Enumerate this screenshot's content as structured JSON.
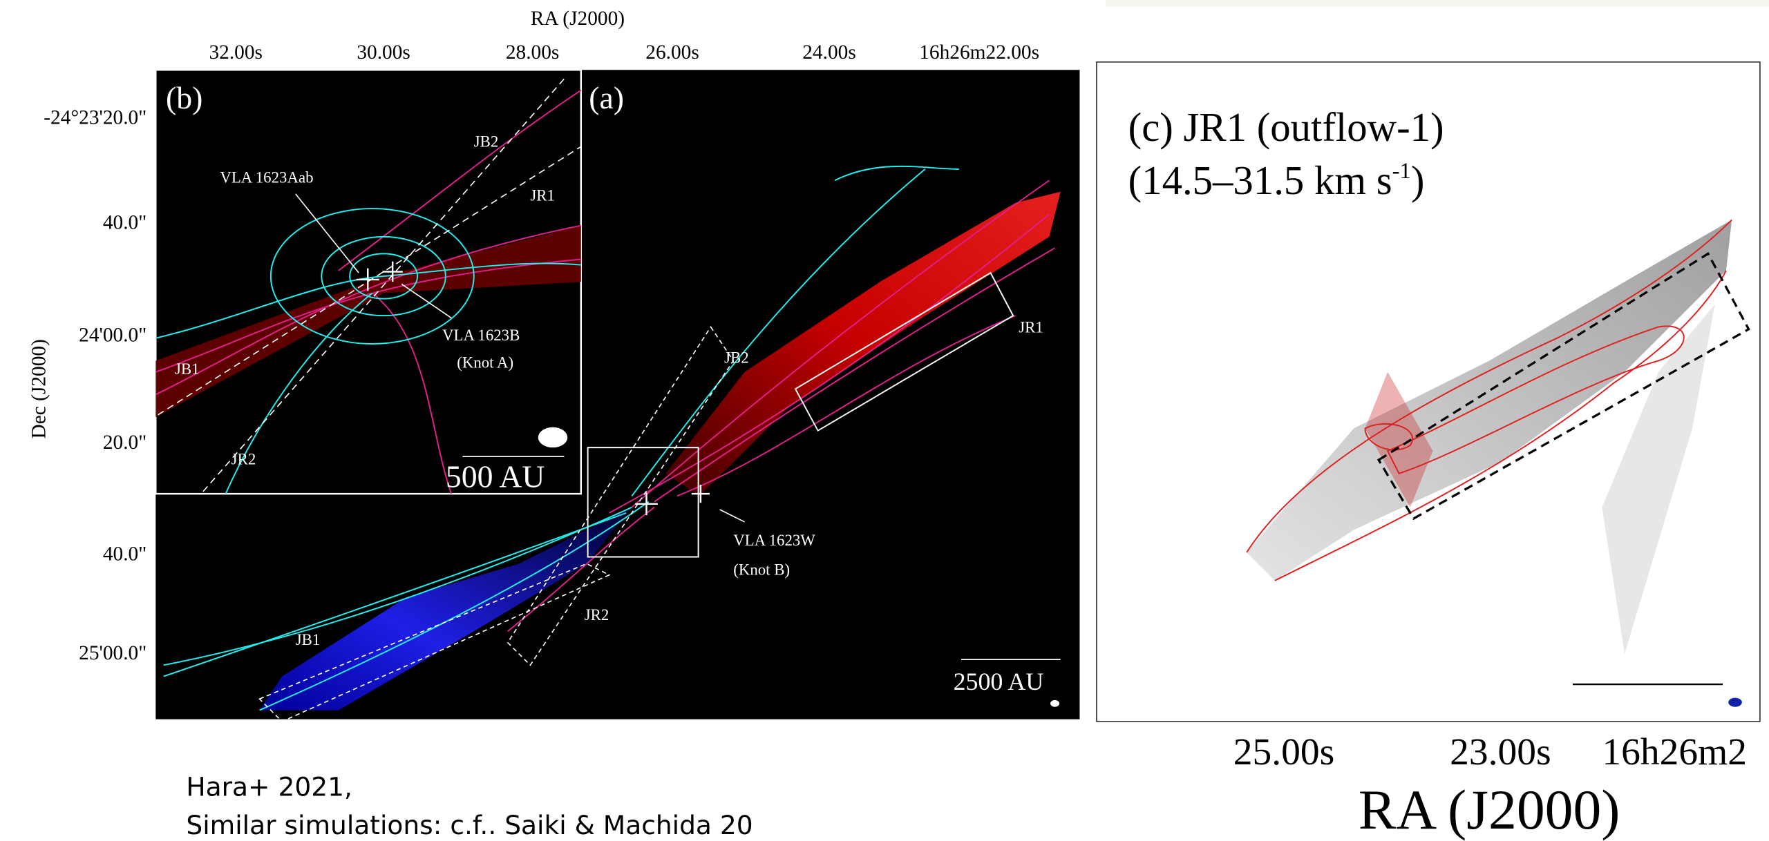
{
  "panel_ab": {
    "x_axis_title": "RA (J2000)",
    "x_ticks": [
      "32.00s",
      "30.00s",
      "28.00s",
      "26.00s",
      "24.00s",
      "16h26m22.00s"
    ],
    "y_axis_title": "Dec (J2000)",
    "y_ticks": [
      "-24°23'20.0\"",
      "40.0\"",
      "24'00.0\"",
      "20.0\"",
      "40.0\"",
      "25'00.0\""
    ],
    "panel_a": {
      "label": "(a)",
      "annotations": [
        "JR1",
        "JB2",
        "VLA 1623W",
        "(Knot B)",
        "JR2",
        "JB1"
      ],
      "scale_bar": "2500 AU"
    },
    "panel_b": {
      "label": "(b)",
      "annotations": [
        "JB2",
        "JR1",
        "VLA 1623Aab",
        "VLA 1623B",
        "(Knot A)",
        "JB1",
        "JR2"
      ],
      "scale_bar": "500 AU"
    }
  },
  "panel_c": {
    "title_line1": "(c) JR1 (outflow-1)",
    "title_line2_main": "(14.5–31.5 km s",
    "title_line2_sup": "-1",
    "title_line2_end": ")",
    "x_ticks": [
      "25.00s",
      "23.00s",
      "16h26m2"
    ],
    "x_axis_title": "RA (J2000)"
  },
  "caption": [
    "Hara+ 2021,",
    "Similar simulations: c.f.. Saiki & Machida 20"
  ]
}
